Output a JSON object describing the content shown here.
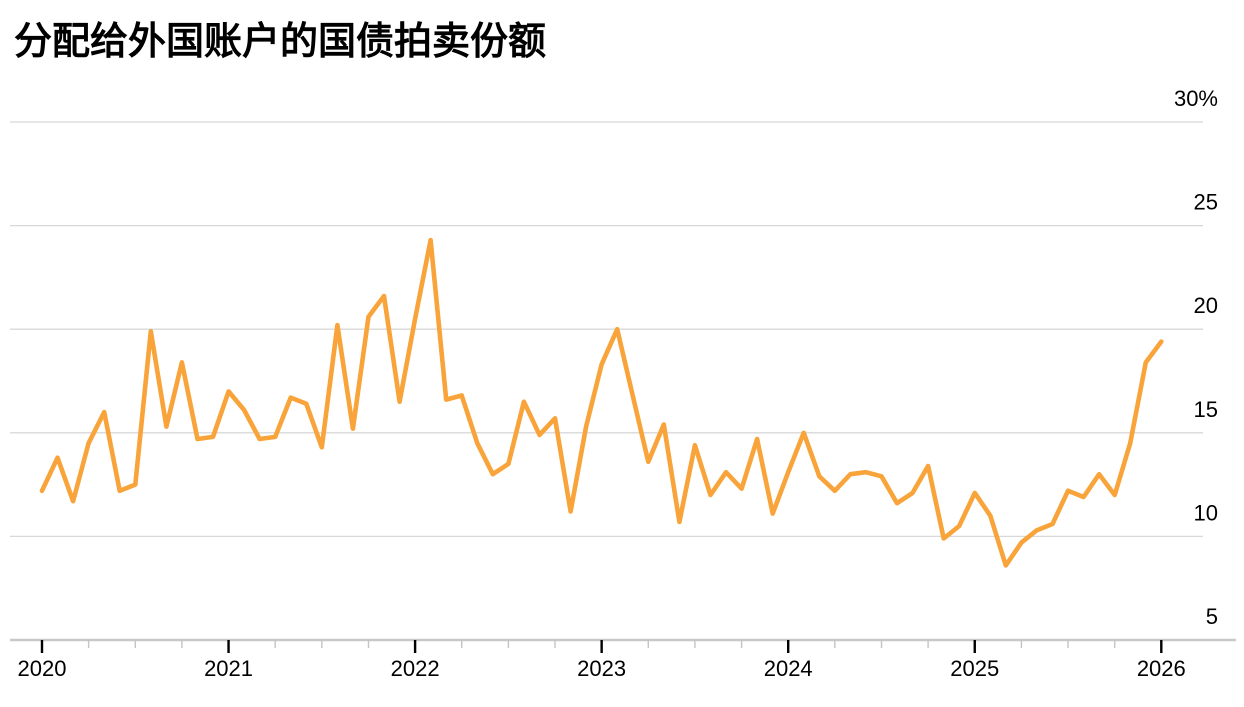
{
  "page": {
    "title": "分配给外国账户的国债拍卖份额"
  },
  "chart_data": {
    "type": "line",
    "title": "分配给外国账户的国债拍卖份额",
    "unit": "%",
    "grid": "horizontal",
    "legend": "none",
    "line_color": "#F8A43A",
    "grid_color": "#d8d8d8",
    "axis_color": "#c8c8c8",
    "major_tick_color": "#000000",
    "minor_tick_color": "#c4c4c4",
    "label_color": "#000000",
    "ylim": [
      5,
      30
    ],
    "y_ticks": [
      {
        "value": 30,
        "label": "30%"
      },
      {
        "value": 25,
        "label": "25"
      },
      {
        "value": 20,
        "label": "20"
      },
      {
        "value": 15,
        "label": "15"
      },
      {
        "value": 10,
        "label": "10"
      },
      {
        "value": 5,
        "label": "5"
      }
    ],
    "x_tick_labels": [
      "2020",
      "2021",
      "2022",
      "2023",
      "2024",
      "2025",
      "2026"
    ],
    "minor_ticks_per_year": 4,
    "series": [
      {
        "name": "foreign-account-auction-share",
        "start": "2020-01",
        "frequency": "monthly",
        "values": [
          12.2,
          13.8,
          11.7,
          14.5,
          16.0,
          12.2,
          12.5,
          19.9,
          15.3,
          18.4,
          14.7,
          14.8,
          17.0,
          16.1,
          14.7,
          14.8,
          16.7,
          16.4,
          14.3,
          20.2,
          15.2,
          20.6,
          21.6,
          16.5,
          20.5,
          24.3,
          16.6,
          16.8,
          14.5,
          13.0,
          13.5,
          16.5,
          14.9,
          15.7,
          11.2,
          15.3,
          18.3,
          20.0,
          16.8,
          13.6,
          15.4,
          10.7,
          14.4,
          12.0,
          13.1,
          12.3,
          14.7,
          11.1,
          13.1,
          15.0,
          12.9,
          12.2,
          13.0,
          13.1,
          12.9,
          11.6,
          12.1,
          13.4,
          9.9,
          10.5,
          12.1,
          11.0,
          8.6,
          9.7,
          10.3,
          10.6,
          12.2,
          11.9,
          13.0,
          12.0,
          14.5,
          18.4,
          19.4
        ]
      }
    ]
  }
}
